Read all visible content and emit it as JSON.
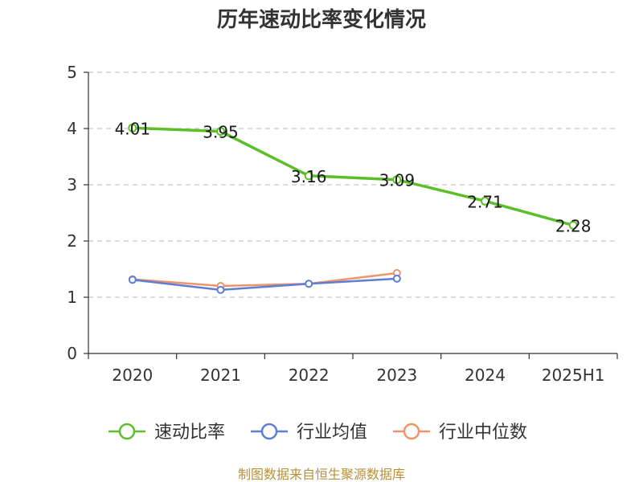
{
  "chart_data": {
    "type": "line",
    "title": "历年速动比率变化情况",
    "categories": [
      "2020",
      "2021",
      "2022",
      "2023",
      "2024",
      "2025H1"
    ],
    "ylim": [
      0,
      5
    ],
    "yticks": [
      0,
      1,
      2,
      3,
      4,
      5
    ],
    "grid": true,
    "legend_position": "bottom",
    "series": [
      {
        "name": "速动比率",
        "color": "#5cbf2a",
        "values": [
          4.01,
          3.95,
          3.16,
          3.09,
          2.71,
          2.28
        ],
        "labels": [
          "4.01",
          "3.95",
          "3.16",
          "3.09",
          "2.71",
          "2.28"
        ]
      },
      {
        "name": "行业均值",
        "color": "#5b7fd6",
        "values": [
          1.31,
          1.13,
          1.24,
          1.33,
          null,
          null
        ]
      },
      {
        "name": "行业中位数",
        "color": "#f0936a",
        "values": [
          1.32,
          1.2,
          1.24,
          1.43,
          null,
          null
        ]
      }
    ]
  },
  "source": "制图数据来自恒生聚源数据库"
}
